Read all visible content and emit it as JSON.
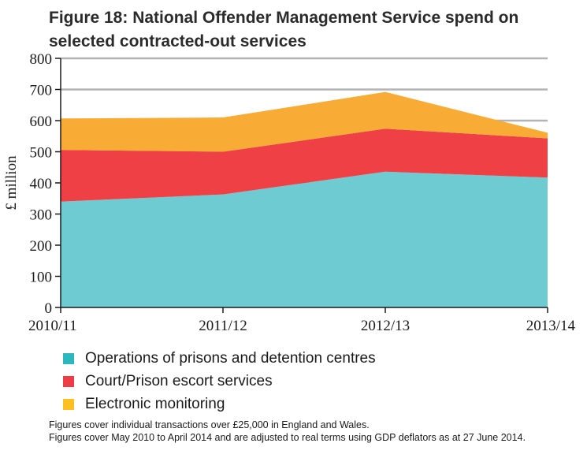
{
  "title": "Figure 18: National Offender Management Service spend on selected contracted-out services",
  "notes": [
    "Figures cover individual transactions over £25,000 in England and Wales.",
    "Figures cover May 2010 to April 2014 and are adjusted to real terms using GDP deflators as at 27 June 2014."
  ],
  "chart_data": {
    "type": "area",
    "stacked": true,
    "title": "Figure 18: National Offender Management Service spend on selected contracted-out services",
    "xlabel": "",
    "ylabel": "£ million",
    "categories": [
      "2010/11",
      "2011/12",
      "2012/13",
      "2013/14"
    ],
    "ylim": [
      0,
      800
    ],
    "yticks": [
      0,
      100,
      200,
      300,
      400,
      500,
      600,
      700,
      800
    ],
    "grid": true,
    "legend_position": "bottom",
    "series": [
      {
        "name": "Operations of prisons and detention centres",
        "color": "#6ecbd1",
        "legend_color": "#2cb8bc",
        "values": [
          340,
          363,
          436,
          417
        ]
      },
      {
        "name": "Court/Prison escort services",
        "color": "#ef4046",
        "legend_color": "#ee3d47",
        "values": [
          166,
          137,
          138,
          126
        ]
      },
      {
        "name": "Electronic monitoring",
        "color": "#f9ac35",
        "legend_color": "#fcc022",
        "values": [
          101,
          110,
          118,
          18
        ]
      }
    ]
  }
}
